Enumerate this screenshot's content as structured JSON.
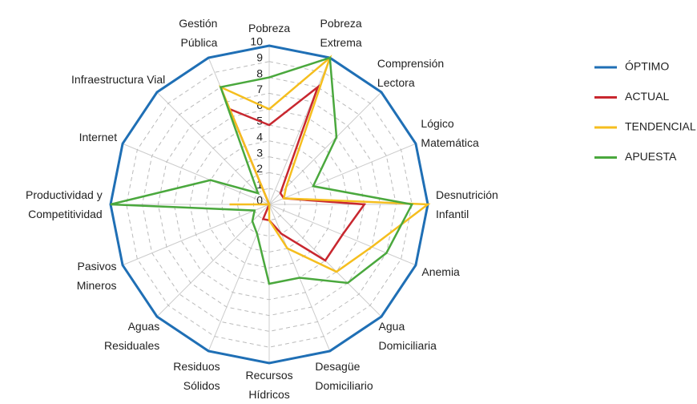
{
  "chart_data": {
    "type": "radar",
    "categories": [
      "Pobreza",
      "Pobreza\nExtrema",
      "Comprensión\nLectora",
      "Lógico\nMatemática",
      "Desnutrición\nInfantil",
      "Anemia",
      "Agua\nDomiciliaria",
      "Desagüe\nDomiciliario",
      "Recursos\nHídricos",
      "Residuos\nSólidos",
      "Aguas\nResiduales",
      "Pasivos\nMineros",
      "Productividad y\nCompetitividad",
      "Internet",
      "Infraestructura  Vial",
      "Gestión\nPública"
    ],
    "series": [
      {
        "name": "ÓPTIMO",
        "color": "#1f6fb5",
        "values": [
          10,
          10,
          10,
          10,
          10,
          10,
          10,
          10,
          10,
          10,
          10,
          10,
          10,
          10,
          10,
          10
        ]
      },
      {
        "name": "ACTUAL",
        "color": "#c8272f",
        "values": [
          5,
          8,
          1,
          1,
          6,
          5,
          5,
          2,
          1,
          1,
          0,
          0,
          0,
          0,
          0,
          6.5
        ]
      },
      {
        "name": "TENDENCIAL",
        "color": "#f5be1e",
        "values": [
          6,
          10,
          1.5,
          1,
          10,
          7,
          6,
          3,
          1,
          0,
          0,
          0,
          2.5,
          0,
          0,
          8
        ]
      },
      {
        "name": "APUESTA",
        "color": "#4aa83d",
        "values": [
          8,
          10,
          6,
          3,
          9,
          8,
          7,
          5,
          5,
          2,
          1.5,
          1,
          10,
          4,
          1,
          8
        ]
      }
    ],
    "ylim": [
      0,
      10
    ],
    "yticks": [
      0,
      1,
      2,
      3,
      4,
      5,
      6,
      7,
      8,
      9,
      10
    ],
    "grid": true
  }
}
